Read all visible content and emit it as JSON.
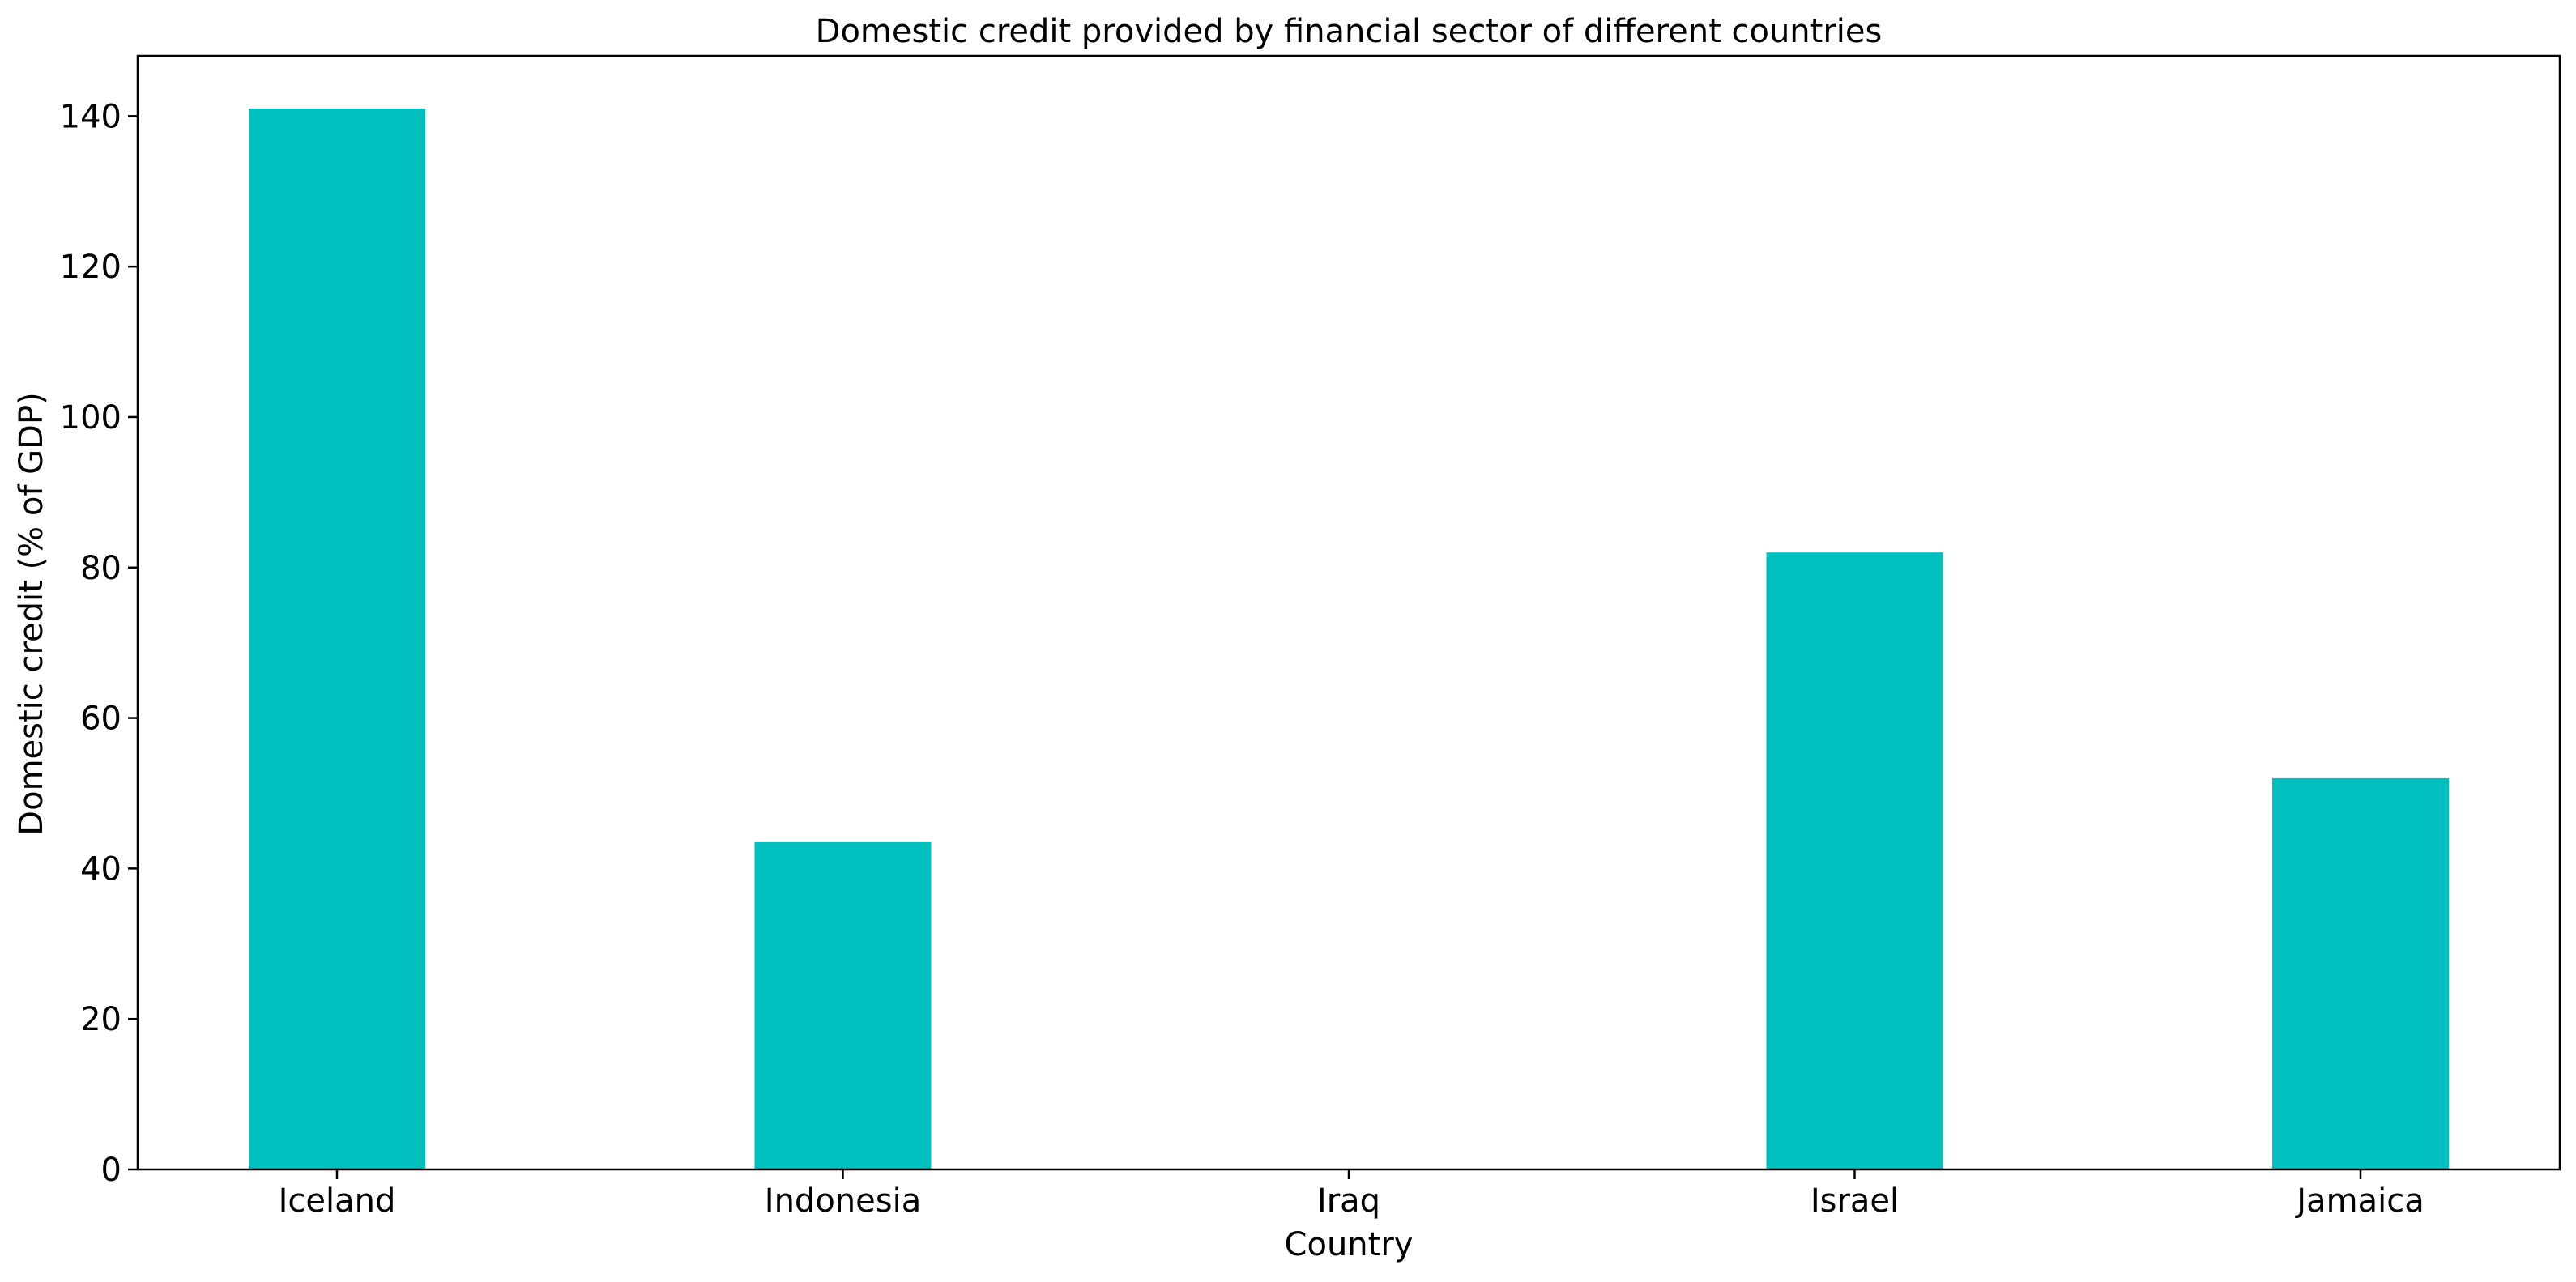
{
  "chart_data": {
    "type": "bar",
    "title": "Domestic credit provided by financial sector of different countries",
    "xlabel": "Country",
    "ylabel": "Domestic credit (% of GDP)",
    "categories": [
      "Iceland",
      "Indonesia",
      "Iraq",
      "Israel",
      "Jamaica"
    ],
    "values": [
      141.0,
      43.5,
      0,
      82.0,
      52.0
    ],
    "ylim": [
      0,
      148
    ],
    "yticks": [
      0,
      20,
      40,
      60,
      80,
      100,
      120,
      140
    ],
    "grid": false,
    "legend": "none",
    "bar_color": "#00BFBF"
  }
}
